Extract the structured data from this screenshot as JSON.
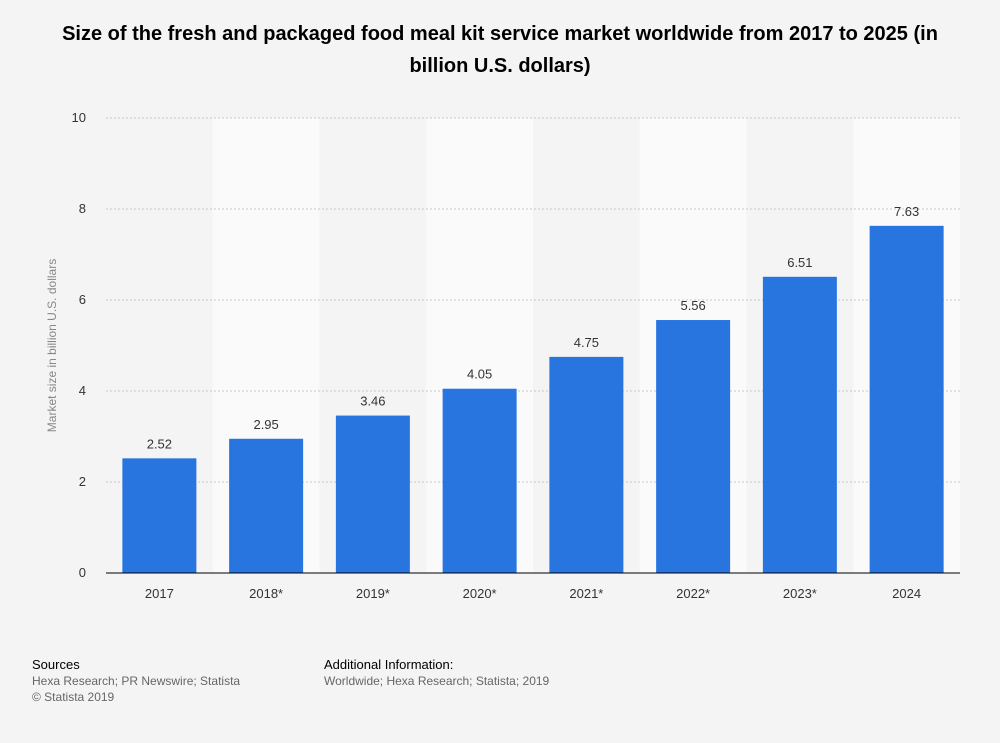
{
  "chart_data": {
    "type": "bar",
    "title": "Size of the fresh and packaged food meal kit service market worldwide from 2017 to 2025 (in billion U.S. dollars)",
    "xlabel": "",
    "ylabel": "Market size in billion U.S. dollars",
    "categories": [
      "2017",
      "2018*",
      "2019*",
      "2020*",
      "2021*",
      "2022*",
      "2023*",
      "2024"
    ],
    "values": [
      2.52,
      2.95,
      3.46,
      4.05,
      4.75,
      5.56,
      6.51,
      7.63
    ],
    "value_labels": [
      "2.52",
      "2.95",
      "3.46",
      "4.05",
      "4.75",
      "5.56",
      "6.51",
      "7.63"
    ],
    "ylim": [
      0,
      10
    ],
    "yticks": [
      "0",
      "2",
      "4",
      "6",
      "8",
      "10"
    ],
    "grid": true,
    "colors": {
      "bar": "#2875e0",
      "band": "#fafafa",
      "grid": "#c8c8c8",
      "axis": "#000000"
    }
  },
  "footer": {
    "sources_heading": "Sources",
    "sources_line1": "Hexa Research; PR Newswire; Statista",
    "sources_line2": "© Statista 2019",
    "additional_heading": "Additional Information:",
    "additional_line1": "Worldwide; Hexa Research; Statista; 2019"
  }
}
